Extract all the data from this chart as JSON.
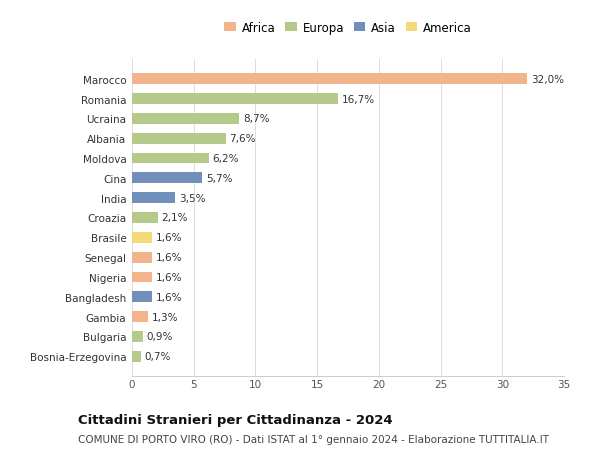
{
  "countries": [
    "Bosnia-Erzegovina",
    "Bulgaria",
    "Gambia",
    "Bangladesh",
    "Nigeria",
    "Senegal",
    "Brasile",
    "Croazia",
    "India",
    "Cina",
    "Moldova",
    "Albania",
    "Ucraina",
    "Romania",
    "Marocco"
  ],
  "values": [
    0.7,
    0.9,
    1.3,
    1.6,
    1.6,
    1.6,
    1.6,
    2.1,
    3.5,
    5.7,
    6.2,
    7.6,
    8.7,
    16.7,
    32.0
  ],
  "labels": [
    "0,7%",
    "0,9%",
    "1,3%",
    "1,6%",
    "1,6%",
    "1,6%",
    "1,6%",
    "2,1%",
    "3,5%",
    "5,7%",
    "6,2%",
    "7,6%",
    "8,7%",
    "16,7%",
    "32,0%"
  ],
  "continents": [
    "Europa",
    "Europa",
    "Africa",
    "Asia",
    "Africa",
    "Africa",
    "America",
    "Europa",
    "Asia",
    "Asia",
    "Europa",
    "Europa",
    "Europa",
    "Europa",
    "Africa"
  ],
  "continent_colors": {
    "Africa": "#F2B48C",
    "Europa": "#B5C98A",
    "Asia": "#7090BB",
    "America": "#F5D878"
  },
  "legend_order": [
    "Africa",
    "Europa",
    "Asia",
    "America"
  ],
  "xlim": [
    0,
    35
  ],
  "xticks": [
    0,
    5,
    10,
    15,
    20,
    25,
    30,
    35
  ],
  "title": "Cittadini Stranieri per Cittadinanza - 2024",
  "subtitle": "COMUNE DI PORTO VIRO (RO) - Dati ISTAT al 1° gennaio 2024 - Elaborazione TUTTITALIA.IT",
  "background_color": "#ffffff",
  "bar_height": 0.55,
  "label_fontsize": 7.5,
  "ytick_fontsize": 7.5,
  "xtick_fontsize": 7.5,
  "title_fontsize": 9.5,
  "subtitle_fontsize": 7.5
}
